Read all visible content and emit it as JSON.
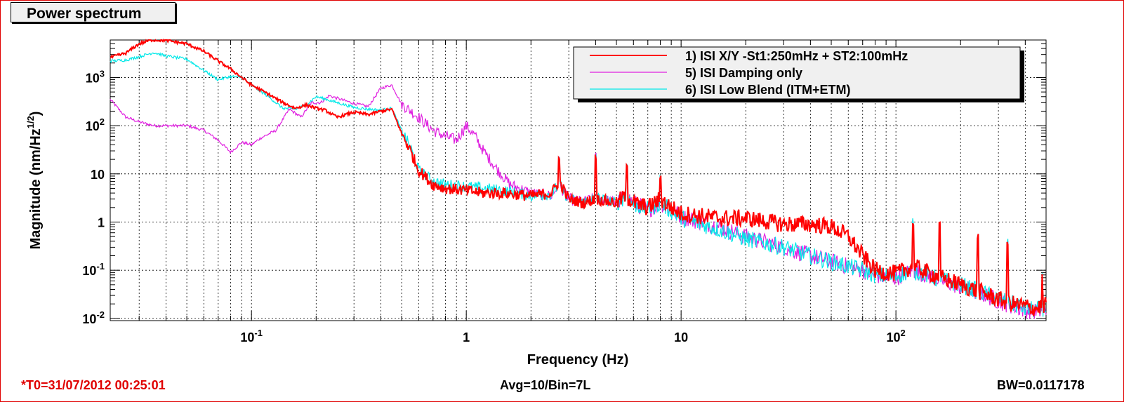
{
  "title": "Power spectrum",
  "footer": {
    "t0": "*T0=31/07/2012 00:25:01",
    "avg": "Avg=10/Bin=7L",
    "bw": "BW=0.0117178"
  },
  "colors": {
    "frame": "#e00000",
    "red": "#ff0000",
    "magenta": "#e020e0",
    "cyan": "#00e8e8"
  },
  "chart_data": {
    "type": "line",
    "xlabel": "Frequency (Hz)",
    "ylabel": "Magnitude (nm/Hz^1/2)",
    "x_scale": "log",
    "y_scale": "log",
    "xlim": [
      0.022,
      500
    ],
    "ylim": [
      0.009,
      6000
    ],
    "grid": true,
    "legend_placement": "top-right",
    "x_ticks": [
      {
        "value": 0.1,
        "label": "10",
        "exp": "-1"
      },
      {
        "value": 1,
        "label": "1",
        "exp": ""
      },
      {
        "value": 10,
        "label": "10",
        "exp": ""
      },
      {
        "value": 100,
        "label": "10",
        "exp": "2"
      }
    ],
    "y_ticks": [
      {
        "value": 0.01,
        "label": "10",
        "exp": "-2"
      },
      {
        "value": 0.1,
        "label": "10",
        "exp": "-1"
      },
      {
        "value": 1,
        "label": "1",
        "exp": ""
      },
      {
        "value": 10,
        "label": "10",
        "exp": ""
      },
      {
        "value": 100,
        "label": "10",
        "exp": "2"
      },
      {
        "value": 1000,
        "label": "10",
        "exp": "3"
      }
    ],
    "series": [
      {
        "name": "1) ISI X/Y -St1:250mHz + ST2:100mHz",
        "color": "#ff0000",
        "points": [
          [
            0.022,
            2600
          ],
          [
            0.026,
            3200
          ],
          [
            0.03,
            5000
          ],
          [
            0.034,
            6000
          ],
          [
            0.04,
            5900
          ],
          [
            0.05,
            5000
          ],
          [
            0.06,
            3500
          ],
          [
            0.07,
            2200
          ],
          [
            0.08,
            1500
          ],
          [
            0.09,
            1000
          ],
          [
            0.1,
            700
          ],
          [
            0.12,
            450
          ],
          [
            0.14,
            300
          ],
          [
            0.16,
            230
          ],
          [
            0.18,
            270
          ],
          [
            0.2,
            230
          ],
          [
            0.22,
            210
          ],
          [
            0.25,
            150
          ],
          [
            0.3,
            190
          ],
          [
            0.35,
            170
          ],
          [
            0.4,
            200
          ],
          [
            0.45,
            220
          ],
          [
            0.5,
            70
          ],
          [
            0.55,
            30
          ],
          [
            0.6,
            12
          ],
          [
            0.7,
            6
          ],
          [
            0.8,
            5
          ],
          [
            1.0,
            4.5
          ],
          [
            1.2,
            4
          ],
          [
            1.5,
            4
          ],
          [
            2.0,
            3.5
          ],
          [
            2.5,
            4
          ],
          [
            2.7,
            7
          ],
          [
            3.0,
            3
          ],
          [
            3.5,
            2.5
          ],
          [
            4.0,
            3
          ],
          [
            5.0,
            2.5
          ],
          [
            5.5,
            3.5
          ],
          [
            6,
            2.5
          ],
          [
            7,
            2
          ],
          [
            8,
            3
          ],
          [
            9,
            2
          ],
          [
            10,
            1.5
          ],
          [
            15,
            1.2
          ],
          [
            20,
            1.2
          ],
          [
            30,
            0.9
          ],
          [
            40,
            0.9
          ],
          [
            50,
            0.8
          ],
          [
            60,
            0.5
          ],
          [
            70,
            0.2
          ],
          [
            80,
            0.1
          ],
          [
            90,
            0.09
          ],
          [
            100,
            0.085
          ],
          [
            120,
            0.12
          ],
          [
            150,
            0.08
          ],
          [
            200,
            0.05
          ],
          [
            250,
            0.035
          ],
          [
            300,
            0.025
          ],
          [
            350,
            0.02
          ],
          [
            400,
            0.018
          ],
          [
            450,
            0.016
          ],
          [
            500,
            0.02
          ]
        ]
      },
      {
        "name": "5) ISI Damping only",
        "color": "#e020e0",
        "points": [
          [
            0.022,
            350
          ],
          [
            0.026,
            150
          ],
          [
            0.03,
            120
          ],
          [
            0.035,
            100
          ],
          [
            0.04,
            100
          ],
          [
            0.05,
            100
          ],
          [
            0.06,
            80
          ],
          [
            0.07,
            50
          ],
          [
            0.08,
            28
          ],
          [
            0.09,
            45
          ],
          [
            0.1,
            40
          ],
          [
            0.11,
            55
          ],
          [
            0.13,
            80
          ],
          [
            0.15,
            220
          ],
          [
            0.17,
            150
          ],
          [
            0.19,
            300
          ],
          [
            0.21,
            300
          ],
          [
            0.23,
            420
          ],
          [
            0.26,
            350
          ],
          [
            0.3,
            290
          ],
          [
            0.35,
            250
          ],
          [
            0.4,
            600
          ],
          [
            0.45,
            700
          ],
          [
            0.5,
            280
          ],
          [
            0.6,
            150
          ],
          [
            0.7,
            80
          ],
          [
            0.8,
            60
          ],
          [
            0.9,
            50
          ],
          [
            1.0,
            100
          ],
          [
            1.1,
            60
          ],
          [
            1.2,
            30
          ],
          [
            1.4,
            12
          ],
          [
            1.6,
            6
          ],
          [
            2.0,
            4
          ],
          [
            2.5,
            3.5
          ],
          [
            2.7,
            6
          ],
          [
            3,
            3
          ],
          [
            3.5,
            2.6
          ],
          [
            4,
            3.2
          ],
          [
            5,
            2.5
          ],
          [
            5.5,
            3.5
          ],
          [
            6,
            2.5
          ],
          [
            7,
            1.8
          ],
          [
            8,
            2.5
          ],
          [
            9,
            1.8
          ],
          [
            10,
            1.3
          ],
          [
            15,
            0.8
          ],
          [
            20,
            0.5
          ],
          [
            30,
            0.3
          ],
          [
            40,
            0.2
          ],
          [
            50,
            0.15
          ],
          [
            60,
            0.12
          ],
          [
            70,
            0.1
          ],
          [
            80,
            0.08
          ],
          [
            90,
            0.07
          ],
          [
            100,
            0.07
          ],
          [
            120,
            0.1
          ],
          [
            150,
            0.07
          ],
          [
            200,
            0.045
          ],
          [
            250,
            0.033
          ],
          [
            300,
            0.023
          ],
          [
            350,
            0.018
          ],
          [
            400,
            0.015
          ],
          [
            450,
            0.014
          ],
          [
            500,
            0.015
          ]
        ]
      },
      {
        "name": "6) ISI Low Blend (ITM+ETM)",
        "color": "#00e8e8",
        "points": [
          [
            0.022,
            2200
          ],
          [
            0.026,
            2300
          ],
          [
            0.03,
            2700
          ],
          [
            0.035,
            3300
          ],
          [
            0.04,
            2800
          ],
          [
            0.05,
            2400
          ],
          [
            0.06,
            1400
          ],
          [
            0.07,
            900
          ],
          [
            0.08,
            1050
          ],
          [
            0.09,
            1000
          ],
          [
            0.1,
            700
          ],
          [
            0.12,
            400
          ],
          [
            0.14,
            230
          ],
          [
            0.16,
            220
          ],
          [
            0.18,
            270
          ],
          [
            0.2,
            400
          ],
          [
            0.22,
            360
          ],
          [
            0.25,
            300
          ],
          [
            0.3,
            240
          ],
          [
            0.35,
            220
          ],
          [
            0.4,
            210
          ],
          [
            0.45,
            230
          ],
          [
            0.5,
            80
          ],
          [
            0.55,
            35
          ],
          [
            0.6,
            12
          ],
          [
            0.7,
            7
          ],
          [
            0.8,
            6
          ],
          [
            1.0,
            5.5
          ],
          [
            1.2,
            5
          ],
          [
            1.5,
            4.5
          ],
          [
            2.0,
            3.5
          ],
          [
            2.5,
            3.8
          ],
          [
            2.7,
            6
          ],
          [
            3.0,
            3
          ],
          [
            3.5,
            2.5
          ],
          [
            4.0,
            3.2
          ],
          [
            5.0,
            2.5
          ],
          [
            5.5,
            3.5
          ],
          [
            6,
            2.4
          ],
          [
            7,
            1.8
          ],
          [
            8,
            2.5
          ],
          [
            9,
            1.7
          ],
          [
            10,
            1.2
          ],
          [
            15,
            0.7
          ],
          [
            20,
            0.45
          ],
          [
            30,
            0.3
          ],
          [
            40,
            0.2
          ],
          [
            50,
            0.15
          ],
          [
            60,
            0.12
          ],
          [
            70,
            0.1
          ],
          [
            80,
            0.08
          ],
          [
            90,
            0.075
          ],
          [
            100,
            0.075
          ],
          [
            120,
            0.1
          ],
          [
            150,
            0.07
          ],
          [
            200,
            0.05
          ],
          [
            250,
            0.035
          ],
          [
            300,
            0.025
          ],
          [
            350,
            0.02
          ],
          [
            400,
            0.016
          ],
          [
            450,
            0.015
          ],
          [
            500,
            0.017
          ]
        ]
      }
    ],
    "peaks": [
      {
        "f": 2.7,
        "v": 25
      },
      {
        "f": 4.0,
        "v": 28
      },
      {
        "f": 5.6,
        "v": 18
      },
      {
        "f": 8.0,
        "v": 10
      },
      {
        "f": 120,
        "v": 1.2
      },
      {
        "f": 160,
        "v": 1.0
      },
      {
        "f": 240,
        "v": 0.6
      },
      {
        "f": 330,
        "v": 0.45
      },
      {
        "f": 480,
        "v": 0.1
      }
    ]
  }
}
